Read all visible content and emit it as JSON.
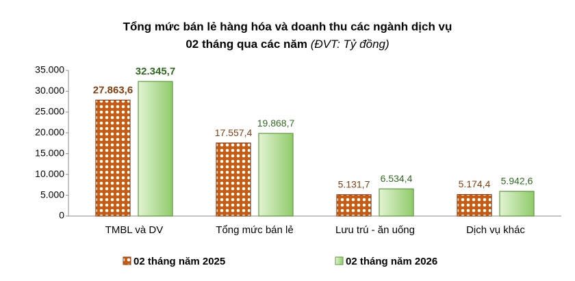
{
  "chart_data": {
    "type": "bar",
    "title": "Tổng mức bán lẻ hàng hóa và doanh thu các ngành dịch vụ",
    "subtitle": "02 tháng qua các năm",
    "unit_note": "(ĐVT: Tỷ đồng)",
    "categories": [
      "TMBL và DV",
      "Tổng mức bán lẻ",
      "Lưu trú - ăn uống",
      "Dịch vụ khác"
    ],
    "series": [
      {
        "name": "02 tháng năm 2025",
        "color": "#c55a11",
        "values": [
          27863.6,
          17557.4,
          5131.7,
          5174.4
        ],
        "value_labels": [
          "27.863,6",
          "17.557,4",
          "5.131,7",
          "5.174,4"
        ]
      },
      {
        "name": "02 tháng năm 2026",
        "color": "#70ad47",
        "values": [
          32345.7,
          19868.7,
          6534.4,
          5942.6
        ],
        "value_labels": [
          "32.345,7",
          "19.868,7",
          "6.534,4",
          "5.942,6"
        ]
      }
    ],
    "ylim": [
      0,
      35000
    ],
    "yticks": [
      0,
      {
        "value": 5000,
        "label": "5.000"
      },
      {
        "value": 10000,
        "label": "10.000"
      },
      {
        "value": 15000,
        "label": "15.000"
      },
      {
        "value": 20000,
        "label": "20.000"
      },
      {
        "value": 25000,
        "label": "25.000"
      },
      {
        "value": 30000,
        "label": "30.000"
      },
      {
        "value": 35000,
        "label": "35.000"
      }
    ],
    "grid": false
  }
}
